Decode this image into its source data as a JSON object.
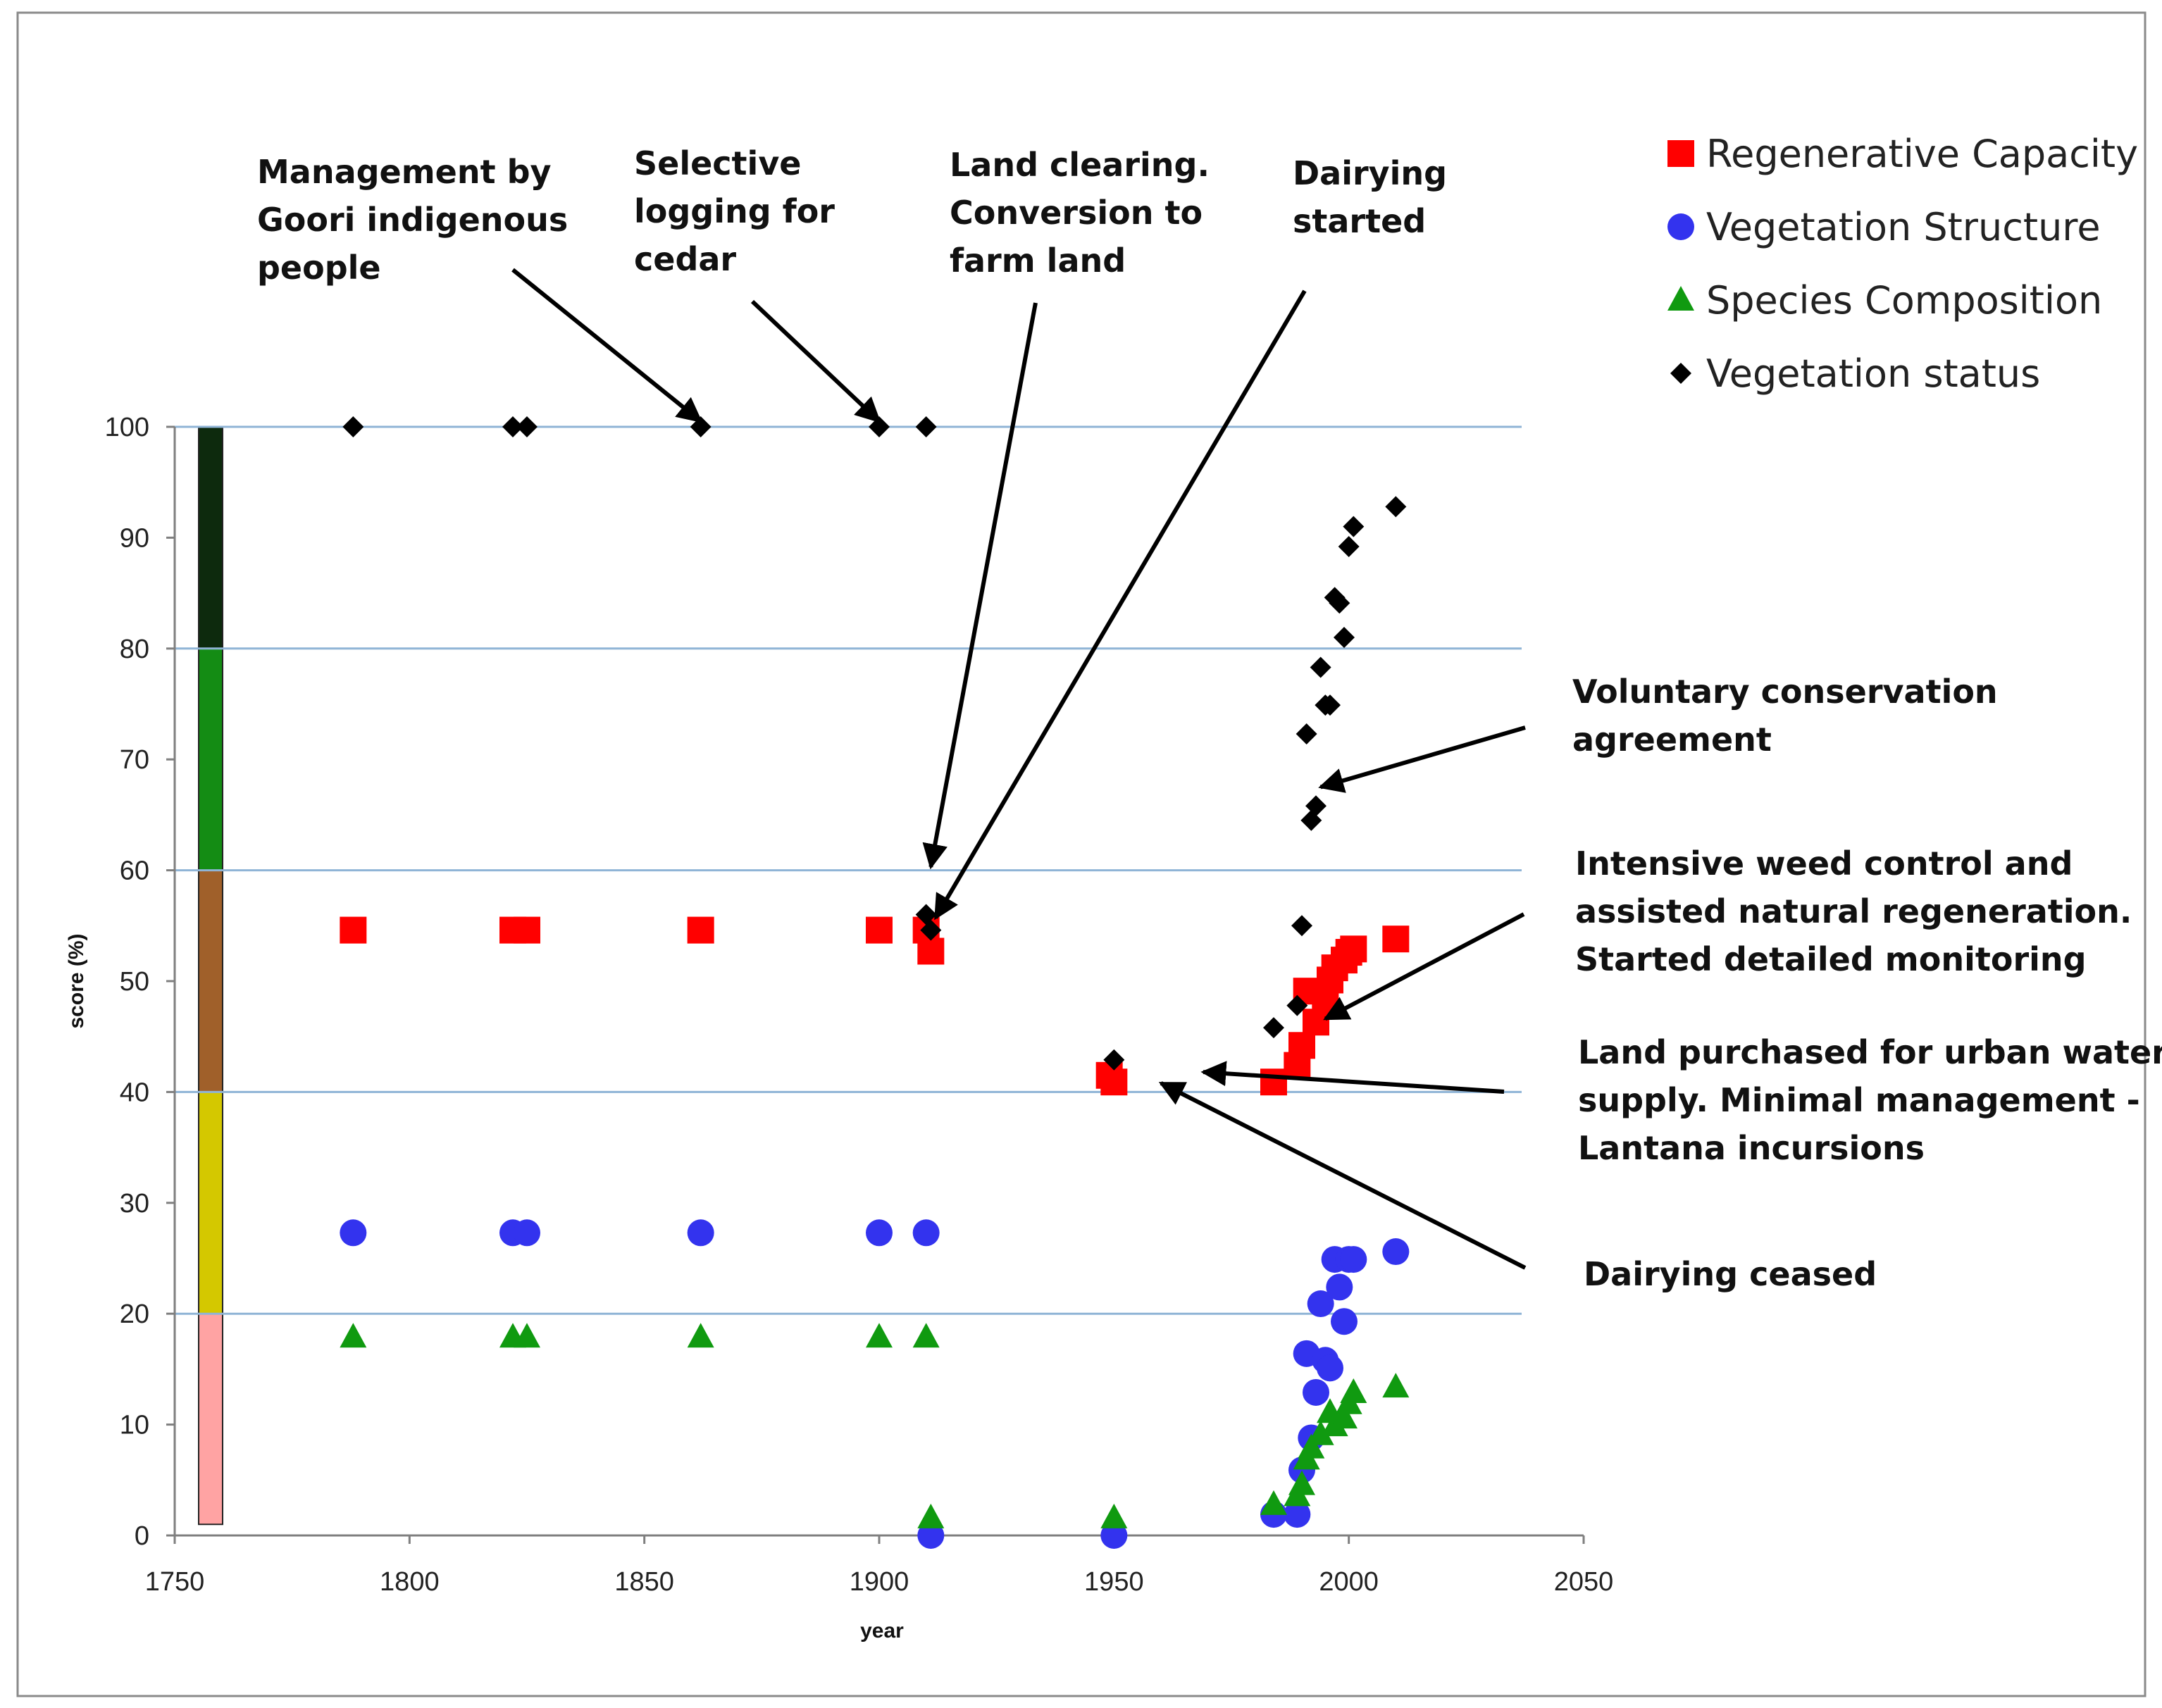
{
  "chart_data": {
    "type": "scatter",
    "xlabel": "year",
    "ylabel": "score (%)",
    "xlim": [
      1750,
      2050
    ],
    "ylim": [
      0,
      100
    ],
    "x_ticks": [
      1750,
      1800,
      1850,
      1900,
      1950,
      2000,
      2050
    ],
    "y_ticks": [
      0,
      10,
      20,
      30,
      40,
      50,
      60,
      70,
      80,
      90,
      100
    ],
    "horizontal_gridlines": [
      20,
      40,
      60,
      80,
      100
    ],
    "condition_bands": [
      {
        "from": 1,
        "to": 20,
        "color": "#ffa3a3"
      },
      {
        "from": 20,
        "to": 40,
        "color": "#d4c800"
      },
      {
        "from": 40,
        "to": 60,
        "color": "#a0602a"
      },
      {
        "from": 60,
        "to": 80,
        "color": "#148c14"
      },
      {
        "from": 80,
        "to": 100,
        "color": "#0d2a0d"
      }
    ],
    "series": [
      {
        "name": "Regenerative Capacity",
        "marker": "square",
        "color": "#ff0000",
        "points": [
          [
            1788,
            54.6
          ],
          [
            1822,
            54.6
          ],
          [
            1825,
            54.6
          ],
          [
            1862,
            54.6
          ],
          [
            1900,
            54.6
          ],
          [
            1910,
            54.6
          ],
          [
            1911,
            52.7
          ],
          [
            1949,
            41.5
          ],
          [
            1950,
            40.9
          ],
          [
            1984,
            40.9
          ],
          [
            1989,
            42.4
          ],
          [
            1990,
            44.2
          ],
          [
            1991,
            49.1
          ],
          [
            1993,
            46.3
          ],
          [
            1995,
            48.5
          ],
          [
            1996,
            50.1
          ],
          [
            1997,
            51.2
          ],
          [
            1999,
            51.9
          ],
          [
            2000,
            52.6
          ],
          [
            2001,
            52.9
          ],
          [
            2010,
            53.8
          ]
        ]
      },
      {
        "name": "Vegetation Structure",
        "marker": "circle",
        "color": "#3333ee",
        "points": [
          [
            1788,
            27.3
          ],
          [
            1822,
            27.3
          ],
          [
            1825,
            27.3
          ],
          [
            1862,
            27.3
          ],
          [
            1900,
            27.3
          ],
          [
            1910,
            27.3
          ],
          [
            1911,
            0
          ],
          [
            1950,
            0
          ],
          [
            1984,
            1.9
          ],
          [
            1989,
            1.9
          ],
          [
            1990,
            5.9
          ],
          [
            1991,
            16.4
          ],
          [
            1992,
            8.8
          ],
          [
            1993,
            12.9
          ],
          [
            1994,
            20.9
          ],
          [
            1995,
            15.8
          ],
          [
            1996,
            15.1
          ],
          [
            1997,
            24.9
          ],
          [
            1998,
            22.4
          ],
          [
            1999,
            19.3
          ],
          [
            2000,
            24.9
          ],
          [
            2001,
            24.9
          ],
          [
            2010,
            25.6
          ]
        ]
      },
      {
        "name": "Species Composition",
        "marker": "triangle",
        "color": "#109a10",
        "points": [
          [
            1788,
            17.9
          ],
          [
            1822,
            17.9
          ],
          [
            1825,
            17.9
          ],
          [
            1862,
            17.9
          ],
          [
            1900,
            17.9
          ],
          [
            1910,
            17.9
          ],
          [
            1911,
            1.6
          ],
          [
            1950,
            1.6
          ],
          [
            1984,
            2.8
          ],
          [
            1989,
            3.6
          ],
          [
            1990,
            4.6
          ],
          [
            1991,
            6.9
          ],
          [
            1992,
            7.9
          ],
          [
            1994,
            9.1
          ],
          [
            1996,
            11.1
          ],
          [
            1997,
            9.9
          ],
          [
            1999,
            10.6
          ],
          [
            2000,
            11.9
          ],
          [
            2001,
            12.9
          ],
          [
            2010,
            13.4
          ]
        ]
      },
      {
        "name": "Vegetation status",
        "marker": "diamond",
        "color": "#000000",
        "points": [
          [
            1788,
            100
          ],
          [
            1822,
            100
          ],
          [
            1825,
            100
          ],
          [
            1862,
            100
          ],
          [
            1900,
            100
          ],
          [
            1910,
            100
          ],
          [
            1910,
            56
          ],
          [
            1911,
            54.6
          ],
          [
            1950,
            42.9
          ],
          [
            1984,
            45.8
          ],
          [
            1989,
            47.8
          ],
          [
            1990,
            55
          ],
          [
            1991,
            72.3
          ],
          [
            1992,
            64.5
          ],
          [
            1993,
            65.8
          ],
          [
            1994,
            78.3
          ],
          [
            1995,
            74.9
          ],
          [
            1996,
            74.9
          ],
          [
            1997,
            84.6
          ],
          [
            1998,
            84.1
          ],
          [
            1999,
            81
          ],
          [
            2000,
            89.2
          ],
          [
            2001,
            91
          ],
          [
            2010,
            92.8
          ]
        ]
      }
    ],
    "annotations": [
      {
        "text": [
          "Management by",
          "Goori indigenous",
          "people"
        ],
        "arrow_to": [
          1862,
          100.5
        ]
      },
      {
        "text": [
          "Selective",
          "logging for",
          "cedar"
        ],
        "arrow_to": [
          1900,
          100.5
        ]
      },
      {
        "text": [
          "Land clearing.",
          "Conversion to",
          "farm land"
        ],
        "arrow_to": [
          1911,
          60.3
        ]
      },
      {
        "text": [
          "Dairying",
          "started"
        ],
        "arrow_to": [
          1912,
          55.7
        ]
      },
      {
        "text": [
          "Voluntary conservation",
          "agreement"
        ],
        "arrow_to": [
          1994,
          67.5
        ]
      },
      {
        "text": [
          "Intensive weed control and",
          "assisted natural regeneration.",
          "Started detailed monitoring"
        ],
        "arrow_to": [
          1995,
          46.6
        ]
      },
      {
        "text": [
          "Land purchased for urban water",
          "supply. Minimal management -",
          "Lantana incursions"
        ],
        "arrow_to": [
          1969,
          41.8
        ]
      },
      {
        "text": [
          "Dairying ceased"
        ],
        "arrow_to": [
          1960,
          40.8
        ]
      }
    ]
  }
}
